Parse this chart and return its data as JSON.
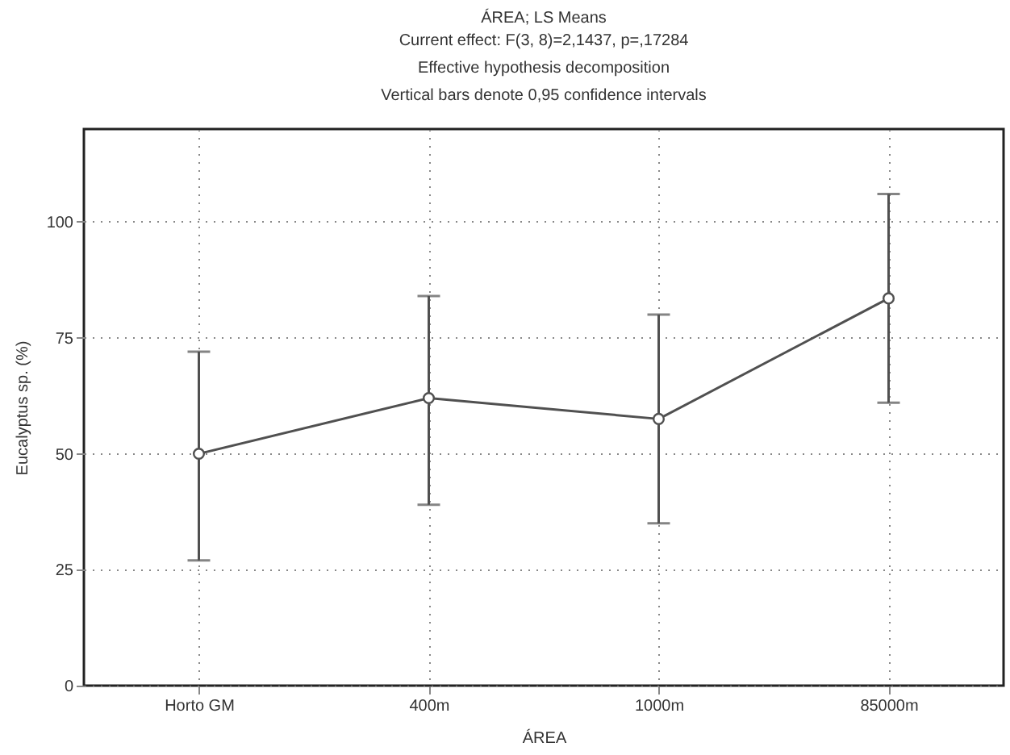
{
  "chart_data": {
    "type": "line",
    "title": "ÁREA; LS Means",
    "subtitle": "Current effect: F(3, 8)=2,1437, p=,17284",
    "annotations": [
      "Effective hypothesis decomposition",
      "Vertical bars denote 0,95 confidence intervals"
    ],
    "xlabel": "ÁREA",
    "ylabel": "Eucalyptus sp. (%)",
    "categories": [
      "Horto GM",
      "400m",
      "1000m",
      "85000m"
    ],
    "series": [
      {
        "color": "#505050",
        "values": [
          50,
          62,
          57.5,
          83.5
        ],
        "errors": [
          [
            27,
            72
          ],
          [
            39,
            84
          ],
          [
            35,
            80
          ],
          [
            61,
            106
          ]
        ]
      }
    ],
    "ylim": [
      0,
      120
    ],
    "yticks": [
      0,
      25,
      50,
      75,
      100
    ],
    "grid": true,
    "marker": "circle",
    "line_style": "solid"
  }
}
